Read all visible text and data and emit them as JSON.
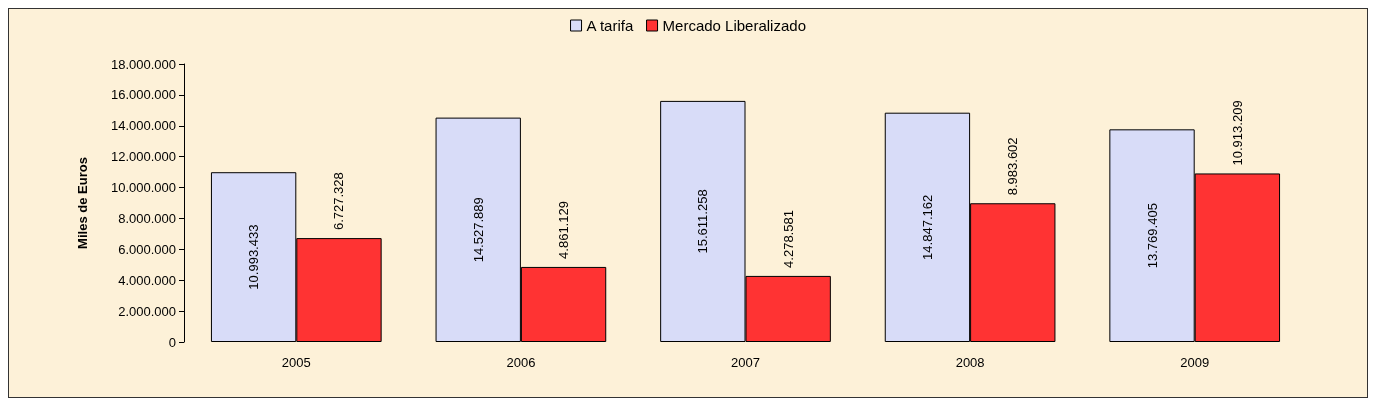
{
  "chart_data": {
    "type": "bar",
    "ylabel": "Miles de Euros",
    "categories": [
      "2005",
      "2006",
      "2007",
      "2008",
      "2009"
    ],
    "series": [
      {
        "name": "A tarifa",
        "color": "#d8dcf8",
        "values": [
          10993433,
          14527889,
          15611258,
          14847162,
          13769405
        ],
        "value_labels": [
          "10.993.433",
          "14.527.889",
          "15.611.258",
          "14.847.162",
          "13.769.405"
        ]
      },
      {
        "name": "Mercado Liberalizado",
        "color": "#ff3333",
        "values": [
          6727328,
          4861129,
          4278581,
          8983602,
          10913209
        ],
        "value_labels": [
          "6.727.328",
          "4.861.129",
          "4.278.581",
          "8.983.602",
          "10.913.209"
        ]
      }
    ],
    "ylim": [
      0,
      18000000
    ],
    "yticks": [
      {
        "value": 0,
        "label": "0"
      },
      {
        "value": 2000000,
        "label": "2.000.000"
      },
      {
        "value": 4000000,
        "label": "4.000.000"
      },
      {
        "value": 6000000,
        "label": "6.000.000"
      },
      {
        "value": 8000000,
        "label": "8.000.000"
      },
      {
        "value": 10000000,
        "label": "10.000.000"
      },
      {
        "value": 12000000,
        "label": "12.000.000"
      },
      {
        "value": 14000000,
        "label": "14.000.000"
      },
      {
        "value": 16000000,
        "label": "16.000.000"
      },
      {
        "value": 18000000,
        "label": "18.000.000"
      }
    ],
    "grid": false,
    "legend": "top"
  }
}
